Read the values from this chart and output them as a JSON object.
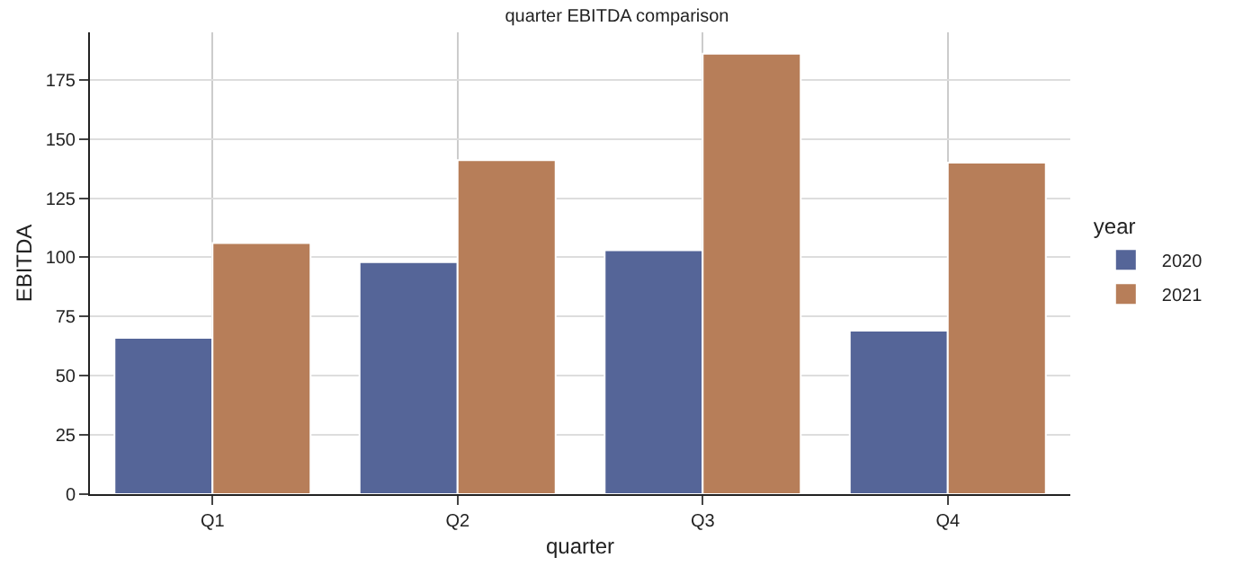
{
  "chart_data": {
    "type": "bar",
    "title": "quarter EBITDA comparison",
    "xlabel": "quarter",
    "ylabel": "EBITDA",
    "legend_title": "year",
    "categories": [
      "Q1",
      "Q2",
      "Q3",
      "Q4"
    ],
    "series": [
      {
        "name": "2020",
        "color": "#556598",
        "values": [
          66,
          98,
          103,
          69
        ]
      },
      {
        "name": "2021",
        "color": "#b77e59",
        "values": [
          106,
          141,
          186,
          140
        ]
      }
    ],
    "ylim": [
      0,
      195
    ],
    "yticks": [
      0,
      25,
      50,
      75,
      100,
      125,
      150,
      175
    ],
    "grid": true,
    "legend": "right"
  }
}
